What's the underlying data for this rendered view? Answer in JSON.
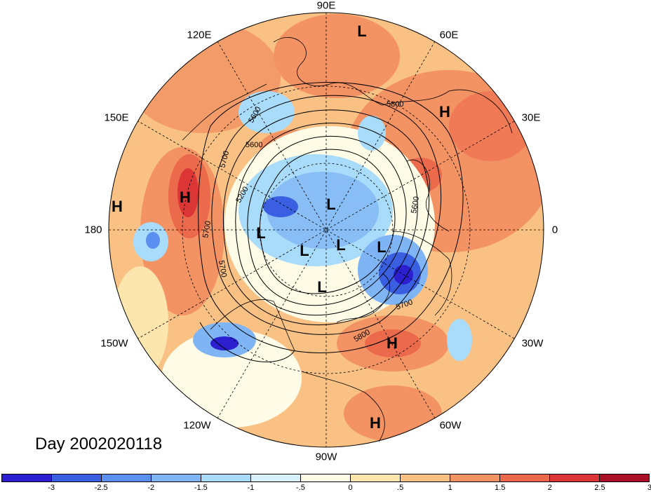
{
  "title": "Day 2002020118",
  "longitude_labels": [
    "90E",
    "60E",
    "30E",
    "0",
    "30W",
    "60W",
    "90W",
    "120W",
    "150W",
    "180",
    "150E",
    "120E"
  ],
  "pressure_centers": [
    {
      "type": "L"
    },
    {
      "type": "H"
    },
    {
      "type": "H"
    },
    {
      "type": "H"
    },
    {
      "type": "L"
    },
    {
      "type": "L"
    },
    {
      "type": "L"
    },
    {
      "type": "L"
    },
    {
      "type": "L"
    },
    {
      "type": "L"
    },
    {
      "type": "H"
    },
    {
      "type": "H"
    }
  ],
  "contour_labels": [
    "5800",
    "5600",
    "5700",
    "5600",
    "5200",
    "5700",
    "5700",
    "5800",
    "5600",
    "5700"
  ],
  "colorbar": {
    "ticks": [
      "-3",
      "-2.5",
      "-2",
      "-1.5",
      "-1",
      "-.5",
      "0",
      ".5",
      "1",
      "1.5",
      "2",
      "2.5",
      "3"
    ],
    "colors": [
      "#2b1fd0",
      "#3a5fe0",
      "#5b8ff0",
      "#7fb5f5",
      "#a9dbfa",
      "#d8f1fd",
      "#fefbe6",
      "#fde6ae",
      "#f9c183",
      "#f39263",
      "#ec6a4c",
      "#dc3535",
      "#aa1128"
    ]
  }
}
